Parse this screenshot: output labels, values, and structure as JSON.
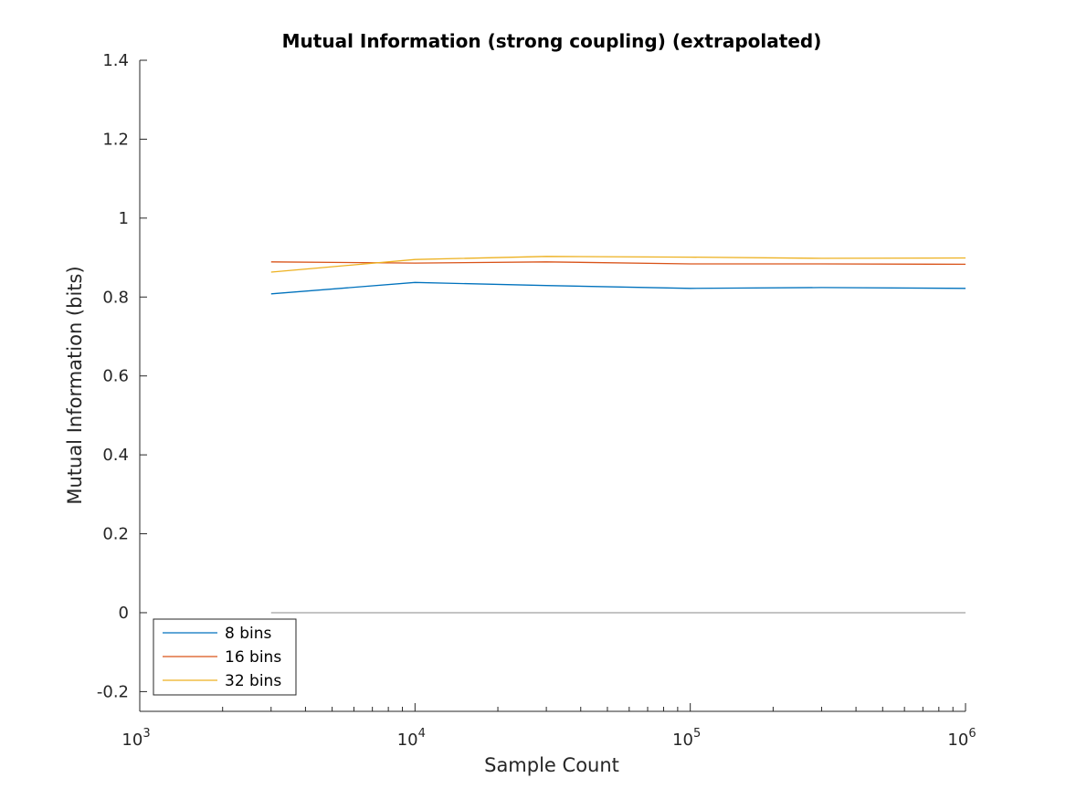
{
  "chart_data": {
    "type": "line",
    "title": "Mutual Information (strong coupling) (extrapolated)",
    "xlabel": "Sample Count",
    "ylabel": "Mutual Information (bits)",
    "xscale": "log",
    "xlim": [
      1000,
      1000000
    ],
    "ylim": [
      -0.25,
      1.4
    ],
    "x_ticks": [
      {
        "value": 1000,
        "base": "10",
        "exp": "3"
      },
      {
        "value": 10000,
        "base": "10",
        "exp": "4"
      },
      {
        "value": 100000,
        "base": "10",
        "exp": "5"
      },
      {
        "value": 1000000,
        "base": "10",
        "exp": "6"
      }
    ],
    "y_ticks": [
      {
        "value": -0.2,
        "label": "-0.2"
      },
      {
        "value": 0,
        "label": "0"
      },
      {
        "value": 0.2,
        "label": "0.2"
      },
      {
        "value": 0.4,
        "label": "0.4"
      },
      {
        "value": 0.6,
        "label": "0.6"
      },
      {
        "value": 0.8,
        "label": "0.8"
      },
      {
        "value": 1,
        "label": "1"
      },
      {
        "value": 1.2,
        "label": "1.2"
      },
      {
        "value": 1.4,
        "label": "1.4"
      }
    ],
    "x": [
      3000,
      10000,
      30000,
      100000,
      300000,
      1000000
    ],
    "series": [
      {
        "name": "8 bins",
        "color": "#0072BD",
        "values": [
          0.808,
          0.837,
          0.829,
          0.822,
          0.824,
          0.822
        ]
      },
      {
        "name": "16 bins",
        "color": "#D95319",
        "values": [
          0.889,
          0.886,
          0.889,
          0.884,
          0.884,
          0.883
        ]
      },
      {
        "name": "32 bins",
        "color": "#EDB120",
        "values": [
          0.863,
          0.895,
          0.903,
          0.901,
          0.898,
          0.899
        ]
      }
    ],
    "reference_line": {
      "y": 0,
      "x_range": [
        3000,
        1000000
      ],
      "color": "#a0a0a0"
    },
    "legend_position": "bottom-left",
    "grid": false,
    "box": false
  }
}
